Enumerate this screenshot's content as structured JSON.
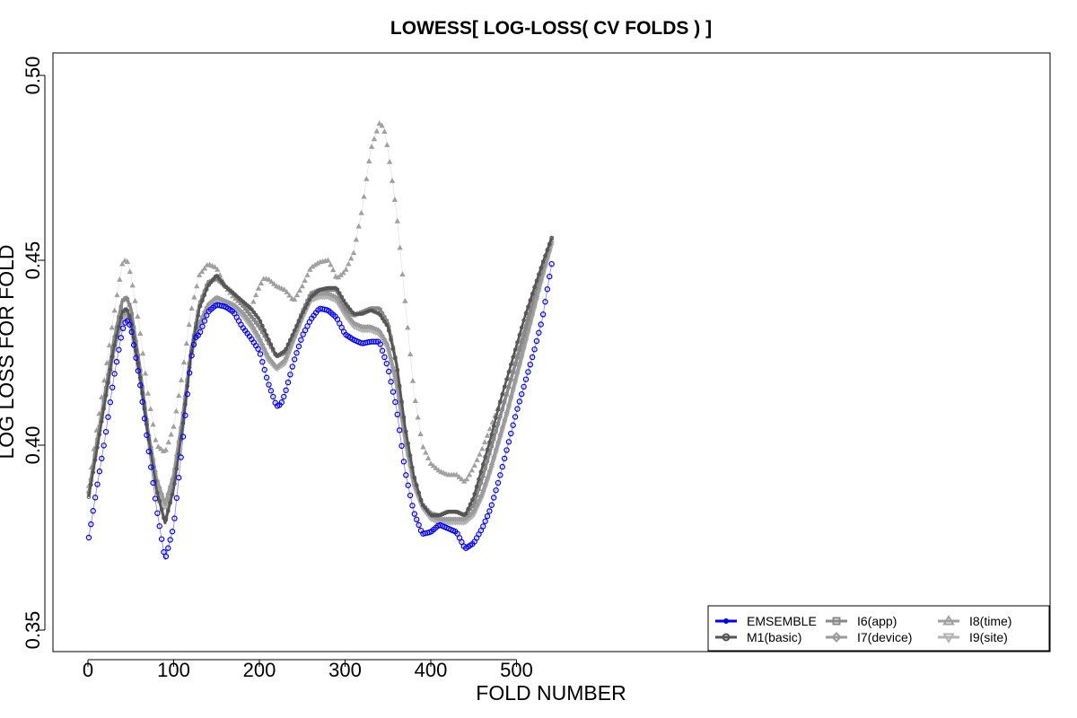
{
  "chart_data": {
    "type": "line",
    "title": "LOWESS[ LOG-LOSS( CV FOLDS ) ]",
    "xlabel": "FOLD NUMBER",
    "ylabel": "LOG LOSS FOR FOLD",
    "xlim": [
      -20,
      563
    ],
    "ylim": [
      0.344,
      0.506
    ],
    "xticks": [
      0,
      100,
      200,
      300,
      400,
      500
    ],
    "yticks": [
      0.35,
      0.4,
      0.45,
      0.5
    ],
    "xtick_labels": [
      "0",
      "100",
      "200",
      "300",
      "400",
      "500"
    ],
    "ytick_labels": [
      "0.35",
      "0.40",
      "0.45",
      "0.50"
    ],
    "grid": false,
    "legend_position": "bottom-right",
    "series": [
      {
        "name": "EMSEMBLE",
        "color": "#0000ff",
        "style": "circle-markers",
        "x": [
          1,
          10,
          20,
          30,
          40,
          45,
          50,
          60,
          70,
          80,
          90,
          100,
          110,
          120,
          125,
          130,
          140,
          150,
          160,
          170,
          180,
          190,
          200,
          210,
          220,
          225,
          230,
          240,
          250,
          260,
          270,
          280,
          290,
          300,
          310,
          320,
          330,
          340,
          350,
          360,
          370,
          380,
          390,
          400,
          410,
          420,
          430,
          440,
          450,
          460,
          470,
          480,
          490,
          500,
          510,
          520,
          530,
          541
        ],
        "y": [
          0.375,
          0.388,
          0.402,
          0.418,
          0.431,
          0.434,
          0.432,
          0.418,
          0.4,
          0.383,
          0.369,
          0.378,
          0.4,
          0.423,
          0.429,
          0.43,
          0.436,
          0.438,
          0.4375,
          0.436,
          0.432,
          0.429,
          0.4255,
          0.417,
          0.4105,
          0.411,
          0.414,
          0.4225,
          0.4295,
          0.434,
          0.437,
          0.4365,
          0.4345,
          0.43,
          0.4285,
          0.4275,
          0.428,
          0.428,
          0.421,
          0.41,
          0.393,
          0.382,
          0.376,
          0.3765,
          0.3785,
          0.3775,
          0.3765,
          0.372,
          0.3735,
          0.3775,
          0.383,
          0.391,
          0.4,
          0.409,
          0.417,
          0.425,
          0.434,
          0.449
        ]
      },
      {
        "name": "M1(basic)",
        "color": "#555555",
        "style": "open-circle-markers",
        "x": [
          1,
          10,
          20,
          30,
          40,
          45,
          50,
          60,
          70,
          80,
          90,
          100,
          110,
          120,
          130,
          140,
          150,
          160,
          170,
          180,
          190,
          200,
          210,
          220,
          230,
          240,
          250,
          260,
          270,
          280,
          290,
          300,
          310,
          320,
          330,
          340,
          350,
          360,
          370,
          380,
          390,
          400,
          410,
          420,
          430,
          440,
          450,
          460,
          470,
          480,
          490,
          500,
          510,
          520,
          530,
          541
        ],
        "y": [
          0.386,
          0.398,
          0.412,
          0.426,
          0.436,
          0.437,
          0.434,
          0.42,
          0.403,
          0.388,
          0.379,
          0.388,
          0.404,
          0.424,
          0.437,
          0.443,
          0.446,
          0.443,
          0.441,
          0.439,
          0.437,
          0.434,
          0.429,
          0.424,
          0.4255,
          0.4305,
          0.4355,
          0.44,
          0.442,
          0.4425,
          0.4425,
          0.4385,
          0.4355,
          0.4355,
          0.4365,
          0.4355,
          0.432,
          0.422,
          0.405,
          0.392,
          0.384,
          0.381,
          0.381,
          0.382,
          0.382,
          0.381,
          0.386,
          0.394,
          0.402,
          0.411,
          0.419,
          0.427,
          0.435,
          0.442,
          0.449,
          0.456
        ]
      },
      {
        "name": "I6(app)",
        "color": "#888888",
        "style": "square-markers",
        "x": [
          1,
          10,
          20,
          30,
          40,
          45,
          50,
          60,
          70,
          80,
          90,
          100,
          110,
          120,
          130,
          140,
          150,
          160,
          170,
          180,
          190,
          200,
          210,
          220,
          230,
          240,
          250,
          260,
          270,
          280,
          290,
          300,
          310,
          320,
          330,
          340,
          350,
          360,
          370,
          380,
          390,
          400,
          410,
          420,
          430,
          440,
          450,
          460,
          470,
          480,
          490,
          500,
          510,
          520,
          530,
          541
        ],
        "y": [
          0.387,
          0.4,
          0.414,
          0.428,
          0.439,
          0.44,
          0.437,
          0.422,
          0.404,
          0.388,
          0.379,
          0.389,
          0.405,
          0.425,
          0.438,
          0.444,
          0.445,
          0.443,
          0.441,
          0.438,
          0.435,
          0.432,
          0.428,
          0.424,
          0.425,
          0.43,
          0.436,
          0.441,
          0.442,
          0.442,
          0.442,
          0.437,
          0.435,
          0.436,
          0.437,
          0.437,
          0.433,
          0.422,
          0.404,
          0.391,
          0.384,
          0.3815,
          0.381,
          0.382,
          0.382,
          0.381,
          0.384,
          0.391,
          0.399,
          0.407,
          0.415,
          0.423,
          0.431,
          0.44,
          0.448,
          0.456
        ]
      },
      {
        "name": "I7(device)",
        "color": "#9b9b9b",
        "style": "diamond-markers",
        "x": [
          1,
          10,
          20,
          30,
          40,
          45,
          50,
          60,
          70,
          80,
          90,
          100,
          110,
          120,
          130,
          140,
          150,
          160,
          170,
          180,
          190,
          200,
          210,
          220,
          230,
          240,
          250,
          260,
          270,
          280,
          290,
          300,
          310,
          320,
          330,
          340,
          350,
          360,
          370,
          380,
          390,
          400,
          410,
          420,
          430,
          440,
          450,
          460,
          470,
          480,
          490,
          500,
          510,
          520,
          530,
          541
        ],
        "y": [
          0.387,
          0.399,
          0.413,
          0.426,
          0.435,
          0.436,
          0.433,
          0.42,
          0.404,
          0.391,
          0.384,
          0.392,
          0.407,
          0.425,
          0.433,
          0.438,
          0.44,
          0.439,
          0.438,
          0.436,
          0.433,
          0.429,
          0.424,
          0.421,
          0.423,
          0.429,
          0.435,
          0.44,
          0.441,
          0.441,
          0.44,
          0.436,
          0.433,
          0.432,
          0.432,
          0.431,
          0.427,
          0.417,
          0.402,
          0.39,
          0.384,
          0.381,
          0.38,
          0.38,
          0.38,
          0.38,
          0.382,
          0.387,
          0.394,
          0.402,
          0.41,
          0.419,
          0.428,
          0.437,
          0.446,
          0.455
        ]
      },
      {
        "name": "I8(time)",
        "color": "#a0a0a0",
        "style": "triangle-up-markers",
        "x": [
          1,
          10,
          20,
          30,
          40,
          45,
          50,
          60,
          70,
          80,
          90,
          100,
          110,
          120,
          130,
          140,
          150,
          160,
          170,
          180,
          190,
          200,
          205,
          210,
          220,
          230,
          240,
          250,
          260,
          270,
          280,
          285,
          290,
          300,
          310,
          320,
          330,
          340,
          345,
          350,
          360,
          370,
          380,
          390,
          400,
          410,
          420,
          430,
          440,
          450,
          460,
          470,
          480,
          490,
          500,
          510,
          520,
          530,
          541
        ],
        "y": [
          0.389,
          0.404,
          0.419,
          0.435,
          0.449,
          0.4505,
          0.446,
          0.432,
          0.414,
          0.4,
          0.398,
          0.405,
          0.419,
          0.436,
          0.446,
          0.449,
          0.448,
          0.443,
          0.44,
          0.438,
          0.437,
          0.443,
          0.445,
          0.445,
          0.443,
          0.442,
          0.439,
          0.443,
          0.448,
          0.4495,
          0.45,
          0.448,
          0.445,
          0.447,
          0.452,
          0.464,
          0.48,
          0.487,
          0.486,
          0.48,
          0.463,
          0.439,
          0.415,
          0.4,
          0.395,
          0.393,
          0.392,
          0.392,
          0.39,
          0.394,
          0.399,
          0.405,
          0.411,
          0.418,
          0.425,
          0.432,
          0.44,
          0.448,
          0.456
        ]
      },
      {
        "name": "I9(site)",
        "color": "#b4b4b4",
        "style": "triangle-down-markers",
        "x": [
          1,
          10,
          20,
          30,
          40,
          45,
          50,
          60,
          70,
          80,
          90,
          100,
          110,
          120,
          130,
          140,
          150,
          160,
          170,
          180,
          190,
          200,
          210,
          220,
          230,
          240,
          250,
          260,
          270,
          280,
          290,
          300,
          310,
          320,
          330,
          340,
          350,
          360,
          370,
          380,
          390,
          400,
          410,
          420,
          430,
          440,
          450,
          460,
          470,
          480,
          490,
          500,
          510,
          520,
          530,
          541
        ],
        "y": [
          0.387,
          0.399,
          0.412,
          0.425,
          0.434,
          0.435,
          0.432,
          0.419,
          0.403,
          0.39,
          0.383,
          0.391,
          0.406,
          0.424,
          0.432,
          0.437,
          0.439,
          0.438,
          0.437,
          0.435,
          0.432,
          0.428,
          0.423,
          0.4205,
          0.422,
          0.428,
          0.434,
          0.439,
          0.44,
          0.44,
          0.439,
          0.435,
          0.432,
          0.431,
          0.431,
          0.43,
          0.426,
          0.416,
          0.401,
          0.389,
          0.383,
          0.38,
          0.379,
          0.379,
          0.379,
          0.379,
          0.381,
          0.386,
          0.393,
          0.401,
          0.409,
          0.418,
          0.427,
          0.436,
          0.445,
          0.454
        ]
      }
    ]
  }
}
